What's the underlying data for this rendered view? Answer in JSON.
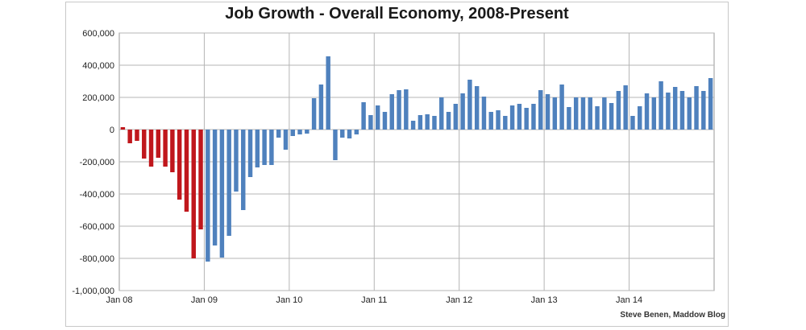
{
  "chart_data": {
    "type": "bar",
    "title": "Job Growth - Overall Economy, 2008-Present",
    "xlabel": "",
    "ylabel": "",
    "ylim": [
      -1000000,
      600000
    ],
    "yticks": [
      600000,
      400000,
      200000,
      0,
      -200000,
      -400000,
      -600000,
      -800000,
      -1000000
    ],
    "ytick_labels": [
      "600,000",
      "400,000",
      "200,000",
      "0",
      "-200,000",
      "-400,000",
      "-600,000",
      "-800,000",
      "-1,000,000"
    ],
    "xtick_labels": [
      "Jan 08",
      "Jan 09",
      "Jan 10",
      "Jan 11",
      "Jan 12",
      "Jan 13",
      "Jan 14"
    ],
    "grid": true,
    "start_month": "Jan 08",
    "colors": {
      "negative_early": "#c0171c",
      "default": "#4f81bd"
    },
    "red_count": 12,
    "values": [
      15000,
      -85000,
      -70000,
      -180000,
      -230000,
      -175000,
      -230000,
      -265000,
      -435000,
      -510000,
      -800000,
      -620000,
      -820000,
      -720000,
      -795000,
      -660000,
      -385000,
      -500000,
      -295000,
      -235000,
      -220000,
      -220000,
      -50000,
      -125000,
      -40000,
      -30000,
      -25000,
      195000,
      280000,
      455000,
      -190000,
      -50000,
      -55000,
      -30000,
      170000,
      90000,
      150000,
      110000,
      220000,
      245000,
      250000,
      55000,
      90000,
      95000,
      85000,
      200000,
      110000,
      160000,
      225000,
      310000,
      270000,
      205000,
      110000,
      120000,
      85000,
      150000,
      160000,
      135000,
      160000,
      245000,
      220000,
      200000,
      280000,
      140000,
      200000,
      200000,
      200000,
      145000,
      200000,
      165000,
      240000,
      275000,
      85000,
      145000,
      225000,
      200000,
      300000,
      230000,
      265000,
      240000,
      200000,
      270000,
      240000,
      320000
    ]
  },
  "credit": "Steve Benen, Maddow Blog"
}
